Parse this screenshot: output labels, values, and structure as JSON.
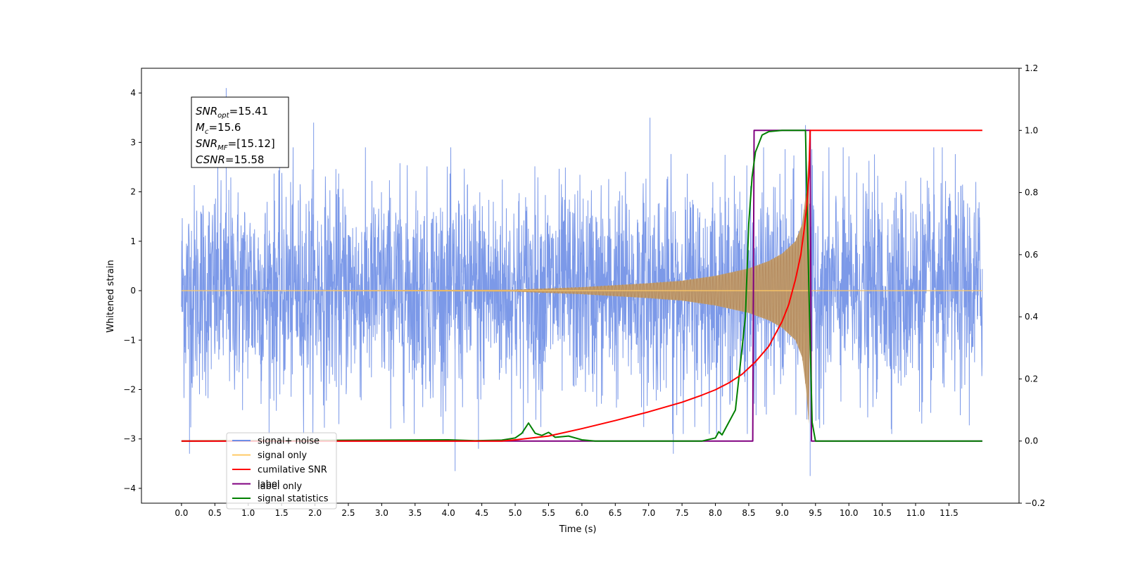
{
  "chart_data": {
    "type": "line",
    "xlabel": "Time (s)",
    "ylabel": "Whitened strain",
    "xlim": [
      -0.6,
      12.55
    ],
    "ylim": [
      -4.3,
      4.5
    ],
    "y2lim": [
      -0.2,
      1.2
    ],
    "x_ticks": [
      0.0,
      0.5,
      1.0,
      1.5,
      2.0,
      2.5,
      3.0,
      3.5,
      4.0,
      4.5,
      5.0,
      5.5,
      6.0,
      6.5,
      7.0,
      7.5,
      8.0,
      8.5,
      9.0,
      9.5,
      10.0,
      10.5,
      11.0,
      11.5
    ],
    "x_tick_labels": [
      "0.0",
      "0.5",
      "1.0",
      "1.5",
      "2.0",
      "2.5",
      "3.0",
      "3.5",
      "4.0",
      "4.5",
      "5.0",
      "5.5",
      "6.0",
      "6.5",
      "7.0",
      "7.5",
      "8.0",
      "8.5",
      "9.0",
      "9.5",
      "10.0",
      "10.5",
      "11.0",
      "11.5"
    ],
    "y_ticks": [
      -4,
      -3,
      -2,
      -1,
      0,
      1,
      2,
      3,
      4
    ],
    "y_tick_labels": [
      "−4",
      "−3",
      "−2",
      "−1",
      "0",
      "1",
      "2",
      "3",
      "4"
    ],
    "y2_ticks": [
      -0.2,
      0.0,
      0.2,
      0.4,
      0.6,
      0.8,
      1.0,
      1.2
    ],
    "y2_tick_labels": [
      "−0.2",
      "0.0",
      "0.2",
      "0.4",
      "0.6",
      "0.8",
      "1.0",
      "1.2"
    ],
    "annotation": [
      {
        "base": "SNR",
        "sub": "opt",
        "value": "=15.41"
      },
      {
        "base": "M",
        "sub": "c",
        "value": "=15.6"
      },
      {
        "base": "SNR",
        "sub": "MF",
        "value": "=[15.12]"
      },
      {
        "base": "CSNR",
        "sub": "",
        "value": "=15.58"
      }
    ],
    "legend": {
      "placement": "lower-left",
      "entries": [
        {
          "label": "signal+ noise",
          "color": "#6e8ee6"
        },
        {
          "label": "signal only",
          "color": "#ffc966"
        },
        {
          "label": "cumilative SNR",
          "color": "#ff0000"
        },
        {
          "label": "label",
          "color": "#800080"
        },
        {
          "label": "signal statistics",
          "color": "#008000"
        }
      ],
      "ghost_text": [
        "label only"
      ]
    },
    "series": [
      {
        "name": "signal+ noise",
        "axis": "left",
        "color": "#6e8ee6",
        "x_range": [
          0.0,
          12.0
        ],
        "envelope_typical": 1.7,
        "spikes": [
          [
            0.67,
            4.1
          ],
          [
            7.02,
            3.5
          ],
          [
            1.98,
            3.4
          ],
          [
            9.35,
            3.35
          ],
          [
            4.1,
            -3.65
          ],
          [
            9.42,
            -3.75
          ],
          [
            0.12,
            -3.3
          ],
          [
            4.45,
            -3.2
          ],
          [
            7.37,
            -3.3
          ]
        ]
      },
      {
        "name": "signal only",
        "axis": "left",
        "color": "#ffc966",
        "amplitude_points": [
          [
            0.0,
            0.0
          ],
          [
            5.0,
            0.02
          ],
          [
            6.0,
            0.07
          ],
          [
            7.0,
            0.15
          ],
          [
            7.5,
            0.2
          ],
          [
            8.0,
            0.3
          ],
          [
            8.5,
            0.45
          ],
          [
            8.8,
            0.6
          ],
          [
            9.0,
            0.75
          ],
          [
            9.2,
            1.0
          ],
          [
            9.3,
            1.35
          ],
          [
            9.36,
            2.0
          ],
          [
            9.4,
            2.7
          ],
          [
            9.42,
            0.0
          ],
          [
            12.0,
            0.0
          ]
        ]
      },
      {
        "name": "cumilative SNR",
        "axis": "right",
        "color": "#ff0000",
        "x": [
          0.0,
          4.8,
          5.0,
          5.5,
          6.0,
          6.5,
          7.0,
          7.5,
          7.8,
          8.0,
          8.2,
          8.4,
          8.6,
          8.8,
          9.0,
          9.1,
          9.2,
          9.28,
          9.33,
          9.37,
          9.4,
          9.42,
          12.0
        ],
        "y": [
          0.0,
          0.0,
          0.004,
          0.016,
          0.04,
          0.066,
          0.094,
          0.125,
          0.148,
          0.165,
          0.187,
          0.215,
          0.255,
          0.305,
          0.385,
          0.44,
          0.52,
          0.6,
          0.68,
          0.76,
          0.85,
          1.0,
          1.0
        ]
      },
      {
        "name": "label",
        "axis": "right",
        "color": "#800080",
        "x": [
          0.0,
          8.56,
          8.58,
          9.42,
          9.44,
          12.0
        ],
        "y": [
          0.0,
          0.0,
          1.0,
          1.0,
          0.0,
          0.0
        ]
      },
      {
        "name": "signal statistics",
        "axis": "right",
        "color": "#008000",
        "x": [
          0.0,
          3.0,
          4.0,
          4.4,
          4.8,
          5.0,
          5.1,
          5.2,
          5.3,
          5.4,
          5.5,
          5.6,
          5.8,
          6.0,
          6.2,
          7.8,
          8.0,
          8.05,
          8.1,
          8.2,
          8.3,
          8.4,
          8.45,
          8.5,
          8.55,
          8.6,
          8.7,
          8.8,
          9.0,
          9.2,
          9.35,
          9.4,
          9.45,
          9.5,
          12.0
        ],
        "y": [
          0.0,
          0.003,
          0.004,
          0.001,
          0.003,
          0.01,
          0.025,
          0.058,
          0.025,
          0.018,
          0.028,
          0.012,
          0.016,
          0.004,
          0.0,
          0.0,
          0.01,
          0.03,
          0.02,
          0.06,
          0.1,
          0.3,
          0.4,
          0.7,
          0.85,
          0.93,
          0.985,
          0.996,
          1.0,
          1.0,
          1.0,
          0.5,
          0.06,
          0.0,
          0.0
        ]
      }
    ]
  }
}
